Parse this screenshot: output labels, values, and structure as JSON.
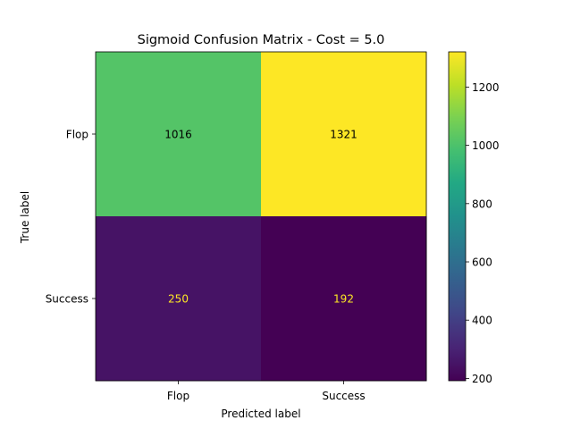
{
  "chart_data": {
    "type": "heatmap",
    "title": "Sigmoid Confusion Matrix - Cost = 5.0",
    "xlabel": "Predicted label",
    "ylabel": "True label",
    "row_labels": [
      "Flop",
      "Success"
    ],
    "col_labels": [
      "Flop",
      "Success"
    ],
    "values": [
      [
        1016,
        1321
      ],
      [
        250,
        192
      ]
    ],
    "colormap": "viridis",
    "colorbar": {
      "range": [
        192,
        1321
      ],
      "ticks": [
        200,
        400,
        600,
        800,
        1000,
        1200
      ]
    },
    "grid": false
  }
}
